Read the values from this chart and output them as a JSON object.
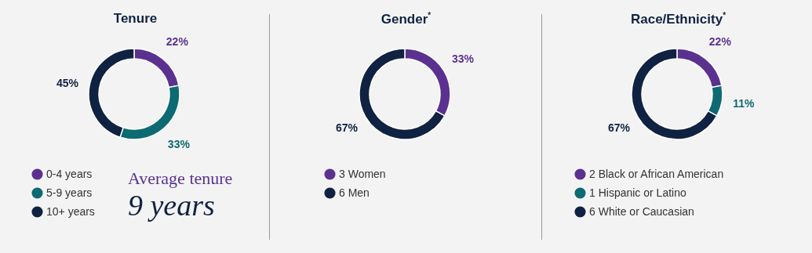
{
  "chart_data": [
    {
      "type": "donut",
      "title": "Tenure",
      "categories": [
        "0-4 years",
        "5-9 years",
        "10+ years"
      ],
      "values": [
        22,
        33,
        45
      ],
      "colors": [
        "#5b3190",
        "#0e6a72",
        "#0f2241"
      ],
      "value_labels": [
        "22%",
        "33%",
        "45%"
      ],
      "legend": "bottom left",
      "annotations": [
        "Average tenure",
        "9 years"
      ]
    },
    {
      "type": "donut",
      "title": "Gender$^{*}$",
      "categories": [
        "3 Women",
        "6 Men"
      ],
      "values": [
        33,
        67
      ],
      "colors": [
        "#5b3190",
        "#0f2241"
      ],
      "value_labels": [
        "33%",
        "67%"
      ],
      "legend": "bottom left"
    },
    {
      "type": "donut",
      "title": "Race/Ethnicity$^{*}$",
      "categories": [
        "2 Black or African American",
        "1 Hispanic or Latino",
        "6 White or Caucasian"
      ],
      "values": [
        22,
        11,
        67
      ],
      "colors": [
        "#5b3190",
        "#0e6a72",
        "#0f2241"
      ],
      "value_labels": [
        "22%",
        "11%",
        "67%"
      ],
      "legend": "bottom left"
    }
  ]
}
